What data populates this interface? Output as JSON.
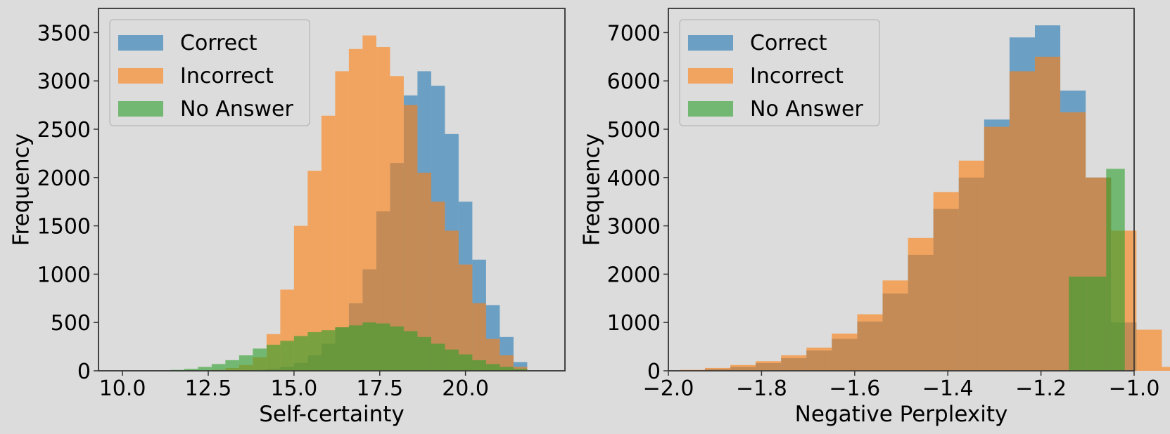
{
  "colors": {
    "correct": "#1f77b4",
    "incorrect": "#ff7f0e",
    "no_answer": "#2ca02c",
    "background": "#dcdcdc"
  },
  "chart_data": [
    {
      "type": "histogram",
      "xlabel": "Self-certainty",
      "ylabel": "Frequency",
      "xlim": [
        9.3,
        22.9
      ],
      "ylim": [
        0,
        3750
      ],
      "xticks": [
        10.0,
        12.5,
        15.0,
        17.5,
        20.0
      ],
      "xtick_labels": [
        "10.0",
        "12.5",
        "15.0",
        "17.5",
        "20.0"
      ],
      "yticks": [
        0,
        500,
        1000,
        1500,
        2000,
        2500,
        3000,
        3500
      ],
      "ytick_labels": [
        "0",
        "500",
        "1000",
        "1500",
        "2000",
        "2500",
        "3000",
        "3500"
      ],
      "grid": false,
      "legend": {
        "position": "top-left",
        "entries": [
          "Correct",
          "Incorrect",
          "No Answer"
        ]
      },
      "bins": {
        "start": 10.2,
        "width": 0.4,
        "count": 29
      },
      "series": [
        {
          "name": "Correct",
          "color": "#1f77b4",
          "values": [
            0,
            0,
            0,
            0,
            0,
            0,
            0,
            0,
            0,
            10,
            20,
            40,
            80,
            160,
            280,
            450,
            700,
            1050,
            1650,
            2150,
            2850,
            3100,
            2950,
            2450,
            1750,
            1150,
            680,
            350,
            90
          ]
        },
        {
          "name": "Incorrect",
          "color": "#ff7f0e",
          "values": [
            0,
            0,
            0,
            0,
            0,
            5,
            10,
            30,
            60,
            140,
            380,
            840,
            1500,
            2070,
            2640,
            3100,
            3330,
            3470,
            3350,
            3050,
            2750,
            2050,
            1750,
            1450,
            1100,
            700,
            330,
            160,
            40
          ]
        },
        {
          "name": "No Answer",
          "color": "#2ca02c",
          "values": [
            0,
            0,
            0,
            10,
            20,
            40,
            70,
            110,
            160,
            230,
            270,
            310,
            360,
            400,
            420,
            450,
            470,
            500,
            490,
            460,
            410,
            350,
            280,
            220,
            170,
            110,
            70,
            40,
            20
          ]
        }
      ]
    },
    {
      "type": "histogram",
      "xlabel": "Negative Perplexity",
      "ylabel": "Frequency",
      "xlim": [
        -2.0,
        -1.0
      ],
      "ylim": [
        0,
        7500
      ],
      "xticks": [
        -2.0,
        -1.8,
        -1.6,
        -1.4,
        -1.2,
        -1.0
      ],
      "xtick_labels": [
        "−2.0",
        "−1.8",
        "−1.6",
        "−1.4",
        "−1.2",
        "−1.0"
      ],
      "yticks": [
        0,
        1000,
        2000,
        3000,
        4000,
        5000,
        6000,
        7000
      ],
      "ytick_labels": [
        "0",
        "1000",
        "2000",
        "3000",
        "4000",
        "5000",
        "6000",
        "7000"
      ],
      "grid": false,
      "legend": {
        "position": "top-left",
        "entries": [
          "Correct",
          "Incorrect",
          "No Answer"
        ]
      },
      "series": [
        {
          "name": "Correct",
          "color": "#1f77b4",
          "bins": {
            "start": -1.976,
            "width": 0.0545,
            "count": 18
          },
          "values": [
            10,
            40,
            80,
            160,
            260,
            420,
            660,
            1020,
            1600,
            2400,
            3350,
            4000,
            5200,
            6900,
            7150,
            5800,
            4000,
            1000
          ]
        },
        {
          "name": "Incorrect",
          "color": "#ff7f0e",
          "bins": {
            "start": -1.976,
            "width": 0.0545,
            "count": 20
          },
          "values": [
            20,
            60,
            120,
            200,
            320,
            480,
            770,
            1170,
            1870,
            2750,
            3700,
            4350,
            5050,
            6200,
            6500,
            5350,
            4000,
            2900,
            850,
            80
          ]
        },
        {
          "name": "No Answer",
          "color": "#2ca02c",
          "bins": {
            "start": -1.14,
            "width": 0.04,
            "count": 3
          },
          "values": [
            1950,
            1950,
            4180
          ]
        }
      ]
    }
  ]
}
